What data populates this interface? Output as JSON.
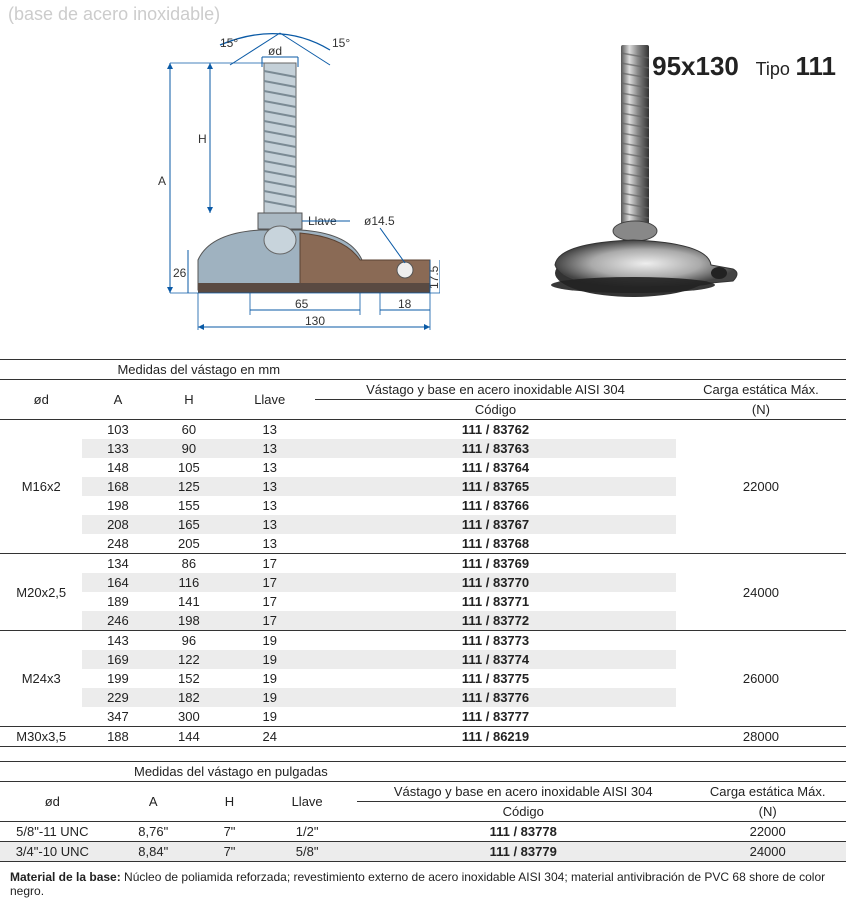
{
  "top_faded": "(base de acero inoxidable)",
  "title": {
    "size": "95x130",
    "tipo_label": "Tipo",
    "tipo_val": "111"
  },
  "diagram": {
    "angle": "15°",
    "od_label": "ød",
    "H": "H",
    "A": "A",
    "llave": "Llave",
    "d145": "ø14.5",
    "h26": "26",
    "h175": "17.5",
    "w65": "65",
    "w18": "18",
    "w130": "130",
    "colors": {
      "steel": "#b8c6d0",
      "steel_dark": "#8ea0ac",
      "brown": "#8a6a55",
      "brown_dark": "#6a4e3b",
      "dim": "#0a5aa6",
      "outline": "#333"
    }
  },
  "table_mm": {
    "header_span": "Medidas del vástago en mm",
    "cols": [
      "ød",
      "A",
      "H",
      "Llave"
    ],
    "mid_header": "Vástago y base en acero inoxidable AISI 304",
    "mid_sub": "Código",
    "right1": "Carga estática Máx.",
    "right2": "(N)",
    "groups": [
      {
        "od": "M16x2",
        "load": "22000",
        "rows": [
          [
            "103",
            "60",
            "13",
            "111 / 83762"
          ],
          [
            "133",
            "90",
            "13",
            "111 / 83763"
          ],
          [
            "148",
            "105",
            "13",
            "111 / 83764"
          ],
          [
            "168",
            "125",
            "13",
            "111 / 83765"
          ],
          [
            "198",
            "155",
            "13",
            "111 / 83766"
          ],
          [
            "208",
            "165",
            "13",
            "111 / 83767"
          ],
          [
            "248",
            "205",
            "13",
            "111 / 83768"
          ]
        ]
      },
      {
        "od": "M20x2,5",
        "load": "24000",
        "rows": [
          [
            "134",
            "86",
            "17",
            "111 / 83769"
          ],
          [
            "164",
            "116",
            "17",
            "111 / 83770"
          ],
          [
            "189",
            "141",
            "17",
            "111 / 83771"
          ],
          [
            "246",
            "198",
            "17",
            "111 / 83772"
          ]
        ]
      },
      {
        "od": "M24x3",
        "load": "26000",
        "rows": [
          [
            "143",
            "96",
            "19",
            "111 / 83773"
          ],
          [
            "169",
            "122",
            "19",
            "111 / 83774"
          ],
          [
            "199",
            "152",
            "19",
            "111 / 83775"
          ],
          [
            "229",
            "182",
            "19",
            "111 / 83776"
          ],
          [
            "347",
            "300",
            "19",
            "111 / 83777"
          ]
        ]
      },
      {
        "od": "M30x3,5",
        "load": "28000",
        "rows": [
          [
            "188",
            "144",
            "24",
            "111 / 86219"
          ]
        ]
      }
    ]
  },
  "table_in": {
    "header_span": "Medidas del vástago en pulgadas",
    "cols": [
      "ød",
      "A",
      "H",
      "Llave"
    ],
    "mid_header": "Vástago y base en acero inoxidable AISI 304",
    "mid_sub": "Código",
    "right1": "Carga estática Máx.",
    "right2": "(N)",
    "rows": [
      {
        "od": "5/8\"-11 UNC",
        "A": "8,76\"",
        "H": "7\"",
        "llave": "1/2\"",
        "code": "111 / 83778",
        "load": "22000"
      },
      {
        "od": "3/4\"-10 UNC",
        "A": "8,84\"",
        "H": "7\"",
        "llave": "5/8\"",
        "code": "111 / 83779",
        "load": "24000"
      }
    ]
  },
  "footnote": {
    "bold": "Material de la base:",
    "rest": " Núcleo de poliamida reforzada; revestimiento externo de acero inoxidable AISI 304; material antivibración de PVC 68 shore de color negro."
  }
}
